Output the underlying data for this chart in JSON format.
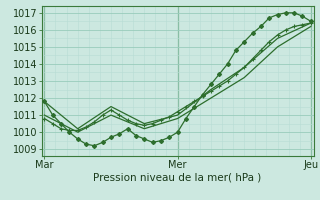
{
  "title": "",
  "xlabel": "Pression niveau de la mer( hPa )",
  "background_color": "#cce8e0",
  "grid_color_major": "#99ccbb",
  "grid_color_minor": "#b8ddd4",
  "line_color": "#2d6e2d",
  "yticks": [
    1009,
    1010,
    1011,
    1012,
    1013,
    1014,
    1015,
    1016,
    1017
  ],
  "xtick_labels": [
    "Mar",
    "Mer",
    "Jeu"
  ],
  "xtick_positions": [
    0,
    48,
    96
  ],
  "ylim": [
    1008.6,
    1017.4
  ],
  "xlim": [
    -1,
    97
  ],
  "series1_x": [
    0,
    3,
    6,
    9,
    12,
    15,
    18,
    21,
    24,
    27,
    30,
    33,
    36,
    39,
    42,
    45,
    48,
    51,
    54,
    57,
    60,
    63,
    66,
    69,
    72,
    75,
    78,
    81,
    84,
    87,
    90,
    93,
    96
  ],
  "series1_y": [
    1011.8,
    1011.0,
    1010.5,
    1010.0,
    1009.6,
    1009.3,
    1009.2,
    1009.4,
    1009.7,
    1009.9,
    1010.2,
    1009.8,
    1009.6,
    1009.4,
    1009.5,
    1009.7,
    1010.0,
    1010.8,
    1011.5,
    1012.2,
    1012.8,
    1013.4,
    1014.0,
    1014.8,
    1015.3,
    1015.8,
    1016.2,
    1016.7,
    1016.9,
    1017.0,
    1017.0,
    1016.8,
    1016.5
  ],
  "series2_x": [
    0,
    3,
    6,
    9,
    12,
    15,
    18,
    21,
    24,
    27,
    30,
    33,
    36,
    39,
    42,
    45,
    48,
    51,
    54,
    57,
    60,
    63,
    66,
    69,
    72,
    75,
    78,
    81,
    84,
    87,
    90,
    93,
    96
  ],
  "series2_y": [
    1010.8,
    1010.5,
    1010.2,
    1010.1,
    1010.1,
    1010.3,
    1010.6,
    1011.0,
    1011.3,
    1011.0,
    1010.7,
    1010.5,
    1010.4,
    1010.5,
    1010.7,
    1010.9,
    1011.2,
    1011.5,
    1011.8,
    1012.1,
    1012.4,
    1012.7,
    1013.0,
    1013.4,
    1013.8,
    1014.3,
    1014.8,
    1015.3,
    1015.7,
    1016.0,
    1016.2,
    1016.3,
    1016.4
  ],
  "series3_x": [
    0,
    12,
    24,
    36,
    48,
    60,
    72,
    84,
    96
  ],
  "series3_y": [
    1011.8,
    1010.2,
    1011.5,
    1010.5,
    1011.0,
    1012.5,
    1013.8,
    1015.5,
    1016.4
  ],
  "series4_x": [
    0,
    12,
    24,
    36,
    48,
    60,
    72,
    84,
    96
  ],
  "series4_y": [
    1011.0,
    1010.0,
    1011.0,
    1010.2,
    1010.8,
    1012.0,
    1013.2,
    1015.0,
    1016.2
  ],
  "s1_marker_x": [
    0,
    3,
    6,
    9,
    12,
    15,
    18,
    21,
    24,
    27,
    30,
    33,
    36,
    39,
    42,
    45,
    48,
    51,
    54,
    57,
    60,
    63,
    66,
    69,
    72,
    75,
    78,
    81,
    84,
    87,
    90,
    93,
    96
  ],
  "s1_marker_y": [
    1011.8,
    1011.0,
    1010.5,
    1010.0,
    1009.6,
    1009.3,
    1009.2,
    1009.4,
    1009.7,
    1009.9,
    1010.2,
    1009.8,
    1009.6,
    1009.4,
    1009.5,
    1009.7,
    1010.0,
    1010.8,
    1011.5,
    1012.2,
    1012.8,
    1013.4,
    1014.0,
    1014.8,
    1015.3,
    1015.8,
    1016.2,
    1016.7,
    1016.9,
    1017.0,
    1017.0,
    1016.8,
    1016.5
  ],
  "s2_marker_x": [
    0,
    3,
    6,
    9,
    12,
    15,
    18,
    21,
    24,
    27,
    30,
    33,
    36,
    39,
    42,
    45,
    48,
    51,
    54,
    57,
    60,
    63,
    66,
    69,
    72,
    75,
    78,
    81,
    84,
    87,
    90,
    93,
    96
  ],
  "s2_marker_y": [
    1010.8,
    1010.5,
    1010.2,
    1010.1,
    1010.1,
    1010.3,
    1010.6,
    1011.0,
    1011.3,
    1011.0,
    1010.7,
    1010.5,
    1010.4,
    1010.5,
    1010.7,
    1010.9,
    1011.2,
    1011.5,
    1011.8,
    1012.1,
    1012.4,
    1012.7,
    1013.0,
    1013.4,
    1013.8,
    1014.3,
    1014.8,
    1015.3,
    1015.7,
    1016.0,
    1016.2,
    1016.3,
    1016.4
  ]
}
